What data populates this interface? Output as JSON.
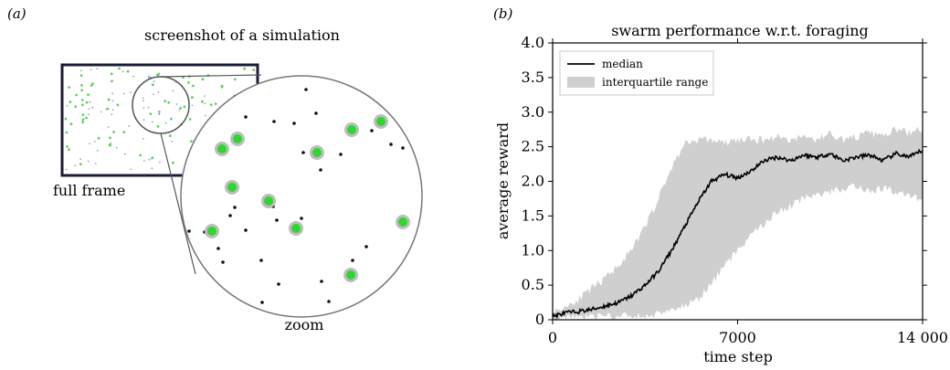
{
  "panel_a": {
    "label": "(a)",
    "title": "screenshot of a simulation",
    "frame_label": "full frame",
    "zoom_label": "zoom"
  },
  "panel_b": {
    "label": "(b)"
  },
  "colors": {
    "median": "#000000",
    "iqr": "#cfcfcf",
    "food": "#3ddc3d",
    "food_ring": "#b9b9b9",
    "agent": "#111111",
    "frame": "#1b1b3a"
  },
  "chart_data": {
    "type": "line",
    "title": "swarm performance w.r.t. foraging",
    "xlabel": "time step",
    "ylabel": "average reward",
    "xlim": [
      0,
      14000
    ],
    "ylim": [
      0,
      4
    ],
    "xticks": [
      0,
      7000,
      14000
    ],
    "xtick_labels": [
      "0",
      "7000",
      "14 000"
    ],
    "yticks": [
      0,
      0.5,
      1,
      1.5,
      2,
      2.5,
      3,
      3.5,
      4
    ],
    "ytick_labels": [
      "0",
      "0.5",
      "1.0",
      "1.5",
      "2.0",
      "2.5",
      "3.0",
      "3.5",
      "4.0"
    ],
    "grid": false,
    "legend_position": "top-left",
    "series": [
      {
        "name": "median",
        "kind": "line",
        "x": [
          0,
          500,
          1000,
          1500,
          2000,
          2500,
          3000,
          3500,
          4000,
          4500,
          5000,
          5500,
          6000,
          6500,
          7000,
          7500,
          8000,
          8500,
          9000,
          9500,
          10000,
          10500,
          11000,
          11500,
          12000,
          12500,
          13000,
          13500,
          14000
        ],
        "values": [
          0.05,
          0.1,
          0.12,
          0.15,
          0.2,
          0.25,
          0.35,
          0.5,
          0.7,
          1.0,
          1.35,
          1.7,
          2.0,
          2.1,
          2.05,
          2.15,
          2.3,
          2.35,
          2.3,
          2.38,
          2.35,
          2.4,
          2.3,
          2.35,
          2.38,
          2.3,
          2.4,
          2.35,
          2.45
        ]
      },
      {
        "name": "interquartile range",
        "kind": "band",
        "x": [
          0,
          500,
          1000,
          1500,
          2000,
          2500,
          3000,
          3500,
          4000,
          4500,
          5000,
          5500,
          6000,
          6500,
          7000,
          7500,
          8000,
          8500,
          9000,
          9500,
          10000,
          10500,
          11000,
          11500,
          12000,
          12500,
          13000,
          13500,
          14000
        ],
        "lower": [
          0.0,
          0.05,
          0.05,
          0.05,
          0.05,
          0.05,
          0.05,
          0.05,
          0.1,
          0.15,
          0.2,
          0.3,
          0.5,
          0.8,
          1.0,
          1.2,
          1.4,
          1.55,
          1.65,
          1.75,
          1.8,
          1.85,
          1.9,
          1.95,
          1.85,
          1.9,
          1.85,
          1.8,
          1.75
        ],
        "upper": [
          0.1,
          0.2,
          0.3,
          0.45,
          0.6,
          0.8,
          1.0,
          1.35,
          1.75,
          2.2,
          2.55,
          2.6,
          2.6,
          2.55,
          2.6,
          2.6,
          2.6,
          2.65,
          2.6,
          2.65,
          2.6,
          2.7,
          2.6,
          2.65,
          2.7,
          2.65,
          2.75,
          2.7,
          2.75
        ]
      }
    ]
  }
}
